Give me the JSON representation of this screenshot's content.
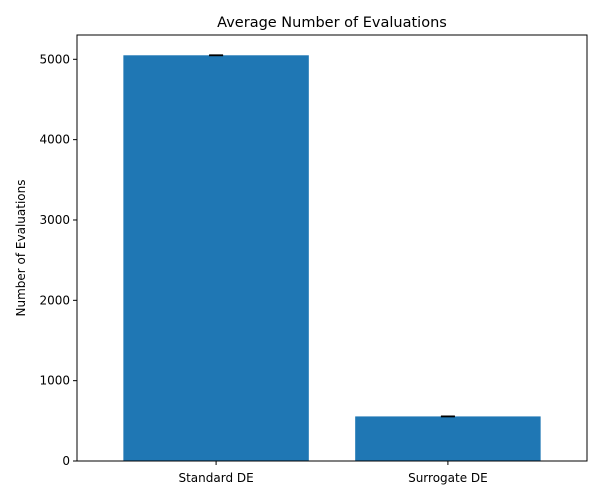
{
  "chart_data": {
    "type": "bar",
    "title": "Average Number of Evaluations",
    "xlabel": "",
    "ylabel": "Number of Evaluations",
    "categories": [
      "Standard DE",
      "Surrogate DE"
    ],
    "values": [
      5050,
      555
    ],
    "error": [
      4,
      4
    ],
    "ylim": [
      0,
      5302.5
    ],
    "yticks": [
      0,
      1000,
      2000,
      3000,
      4000,
      5000
    ],
    "ytick_labels": [
      "0",
      "1000",
      "2000",
      "3000",
      "4000",
      "5000"
    ],
    "grid": false,
    "legend": "none",
    "colors": {
      "bar": "#1f77b4",
      "errorbar": "#000000",
      "axes": "#000000"
    }
  }
}
